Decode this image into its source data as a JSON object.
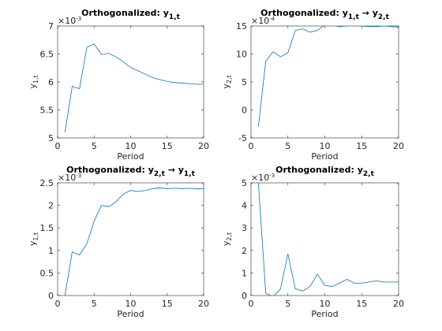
{
  "chart_data": [
    {
      "type": "line",
      "title": [
        "Orthogonalized: y",
        "1,t"
      ],
      "y_exponent": [
        "×10",
        "-3"
      ],
      "xlabel": "Period",
      "ylabel": [
        "y",
        "1,t"
      ],
      "x": [
        1,
        2,
        3,
        4,
        5,
        6,
        7,
        8,
        9,
        10,
        11,
        12,
        13,
        14,
        15,
        16,
        17,
        18,
        19,
        20
      ],
      "values": [
        5.1,
        5.92,
        5.88,
        6.62,
        6.68,
        6.49,
        6.51,
        6.45,
        6.36,
        6.26,
        6.2,
        6.14,
        6.08,
        6.04,
        6.01,
        5.99,
        5.98,
        5.97,
        5.96,
        5.96
      ],
      "color": "#0072bd",
      "xlim": [
        0,
        20
      ],
      "xticks": [
        0,
        5,
        10,
        15,
        20
      ],
      "ylim": [
        5,
        7
      ],
      "yticks": [
        5,
        5.5,
        6,
        6.5,
        7
      ]
    },
    {
      "type": "line",
      "title": [
        "Orthogonalized: y",
        "1,t",
        " → y",
        "2,t"
      ],
      "y_exponent": [
        "×10",
        "-4"
      ],
      "xlabel": "Period",
      "ylabel": [
        "y",
        "2,t"
      ],
      "x": [
        1,
        2,
        3,
        4,
        5,
        6,
        7,
        8,
        9,
        10,
        11,
        12,
        13,
        14,
        15,
        16,
        17,
        18,
        19,
        20
      ],
      "values": [
        -3,
        8.7,
        10.4,
        9.5,
        10.2,
        14.2,
        14.5,
        13.9,
        14.2,
        15.2,
        15.1,
        14.9,
        15,
        15.2,
        15,
        14.9,
        14.9,
        15,
        14.9,
        14.8
      ],
      "color": "#0072bd",
      "xlim": [
        0,
        20
      ],
      "xticks": [
        0,
        5,
        10,
        15,
        20
      ],
      "ylim": [
        -5,
        15
      ],
      "yticks": [
        -5,
        0,
        5,
        10,
        15
      ]
    },
    {
      "type": "line",
      "title": [
        "Orthogonalized: y",
        "2,t",
        " → y",
        "1,t"
      ],
      "y_exponent": [
        "×10",
        "-3"
      ],
      "xlabel": "Period",
      "ylabel": [
        "y",
        "1,t"
      ],
      "x": [
        1,
        2,
        3,
        4,
        5,
        6,
        7,
        8,
        9,
        10,
        11,
        12,
        13,
        14,
        15,
        16,
        17,
        18,
        19,
        20
      ],
      "values": [
        0,
        0.97,
        0.9,
        1.15,
        1.65,
        2.0,
        1.97,
        2.08,
        2.25,
        2.33,
        2.31,
        2.33,
        2.37,
        2.39,
        2.37,
        2.38,
        2.37,
        2.38,
        2.37,
        2.37
      ],
      "color": "#0072bd",
      "xlim": [
        0,
        20
      ],
      "xticks": [
        0,
        5,
        10,
        15,
        20
      ],
      "ylim": [
        0,
        2.5
      ],
      "yticks": [
        0,
        0.5,
        1,
        1.5,
        2,
        2.5
      ]
    },
    {
      "type": "line",
      "title": [
        "Orthogonalized: y",
        "2,t"
      ],
      "y_exponent": [
        "×10",
        "-3"
      ],
      "xlabel": "Period",
      "ylabel": [
        "y",
        "2,t"
      ],
      "x": [
        1,
        2,
        3,
        4,
        5,
        6,
        7,
        8,
        9,
        10,
        11,
        12,
        13,
        14,
        15,
        16,
        17,
        18,
        19,
        20
      ],
      "values": [
        5.0,
        0.1,
        -0.05,
        0.3,
        1.85,
        0.3,
        0.2,
        0.4,
        0.95,
        0.45,
        0.4,
        0.55,
        0.72,
        0.55,
        0.55,
        0.6,
        0.65,
        0.6,
        0.6,
        0.6
      ],
      "color": "#0072bd",
      "xlim": [
        0,
        20
      ],
      "xticks": [
        0,
        5,
        10,
        15,
        20
      ],
      "ylim": [
        0,
        5
      ],
      "yticks": [
        0,
        1,
        2,
        3,
        4,
        5
      ]
    }
  ]
}
